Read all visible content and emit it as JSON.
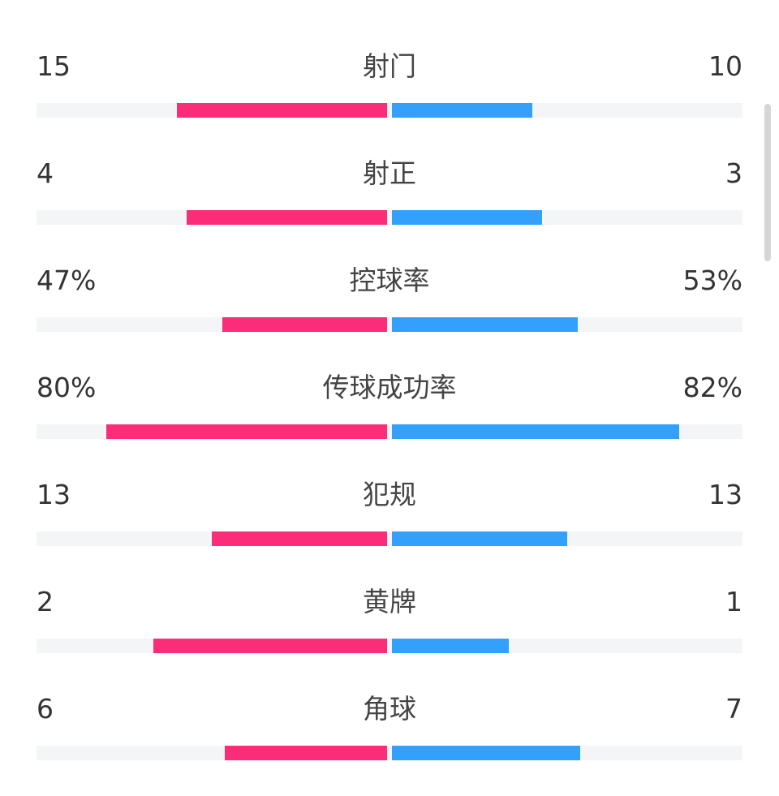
{
  "colors": {
    "home": "#fb2d78",
    "away": "#33a1fb",
    "track": "#f4f5f7"
  },
  "stats": [
    {
      "label": "射门",
      "home": "15",
      "away": "10",
      "home_share": 0.6,
      "away_share": 0.4
    },
    {
      "label": "射正",
      "home": "4",
      "away": "3",
      "home_share": 0.571,
      "away_share": 0.429
    },
    {
      "label": "控球率",
      "home": "47%",
      "away": "53%",
      "home_share": 0.47,
      "away_share": 0.53
    },
    {
      "label": "传球成功率",
      "home": "80%",
      "away": "82%",
      "home_share": 0.8,
      "away_share": 0.82
    },
    {
      "label": "犯规",
      "home": "13",
      "away": "13",
      "home_share": 0.5,
      "away_share": 0.5
    },
    {
      "label": "黄牌",
      "home": "2",
      "away": "1",
      "home_share": 0.667,
      "away_share": 0.333
    },
    {
      "label": "角球",
      "home": "6",
      "away": "7",
      "home_share": 0.462,
      "away_share": 0.538
    }
  ]
}
